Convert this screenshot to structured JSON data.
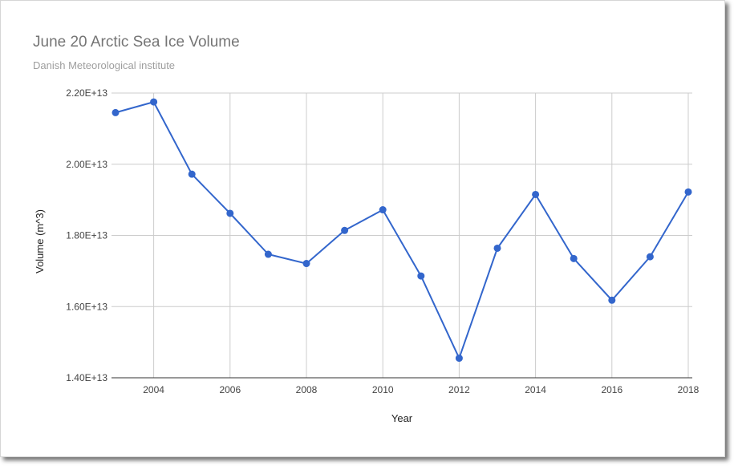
{
  "chart_data": {
    "type": "line",
    "title": "June 20 Arctic Sea Ice Volume",
    "subtitle": "Danish Meteorological institute",
    "xlabel": "Year",
    "ylabel": "Volume (m^3)",
    "xlim": [
      2003,
      2018
    ],
    "ylim": [
      14000000000000.0,
      22000000000000.0
    ],
    "x_ticks": [
      "2004",
      "2006",
      "2008",
      "2010",
      "2012",
      "2014",
      "2016",
      "2018"
    ],
    "x_tick_values": [
      2004,
      2006,
      2008,
      2010,
      2012,
      2014,
      2016,
      2018
    ],
    "y_ticks": [
      "1.40E+13",
      "1.60E+13",
      "1.80E+13",
      "2.00E+13",
      "2.20E+13"
    ],
    "y_tick_values": [
      14000000000000.0,
      16000000000000.0,
      18000000000000.0,
      20000000000000.0,
      22000000000000.0
    ],
    "grid": true,
    "legend": "none",
    "series_color": "#3366cc",
    "series": [
      {
        "x": [
          2003,
          2004,
          2005,
          2006,
          2007,
          2008,
          2009,
          2010,
          2011,
          2012,
          2013,
          2014,
          2015,
          2016,
          2017,
          2018
        ],
        "values": [
          21450000000000.0,
          21750000000000.0,
          19720000000000.0,
          18620000000000.0,
          17470000000000.0,
          17210000000000.0,
          18140000000000.0,
          18720000000000.0,
          16860000000000.0,
          14550000000000.0,
          17640000000000.0,
          19150000000000.0,
          17350000000000.0,
          16180000000000.0,
          17400000000000.0,
          19220000000000.0
        ]
      }
    ]
  }
}
